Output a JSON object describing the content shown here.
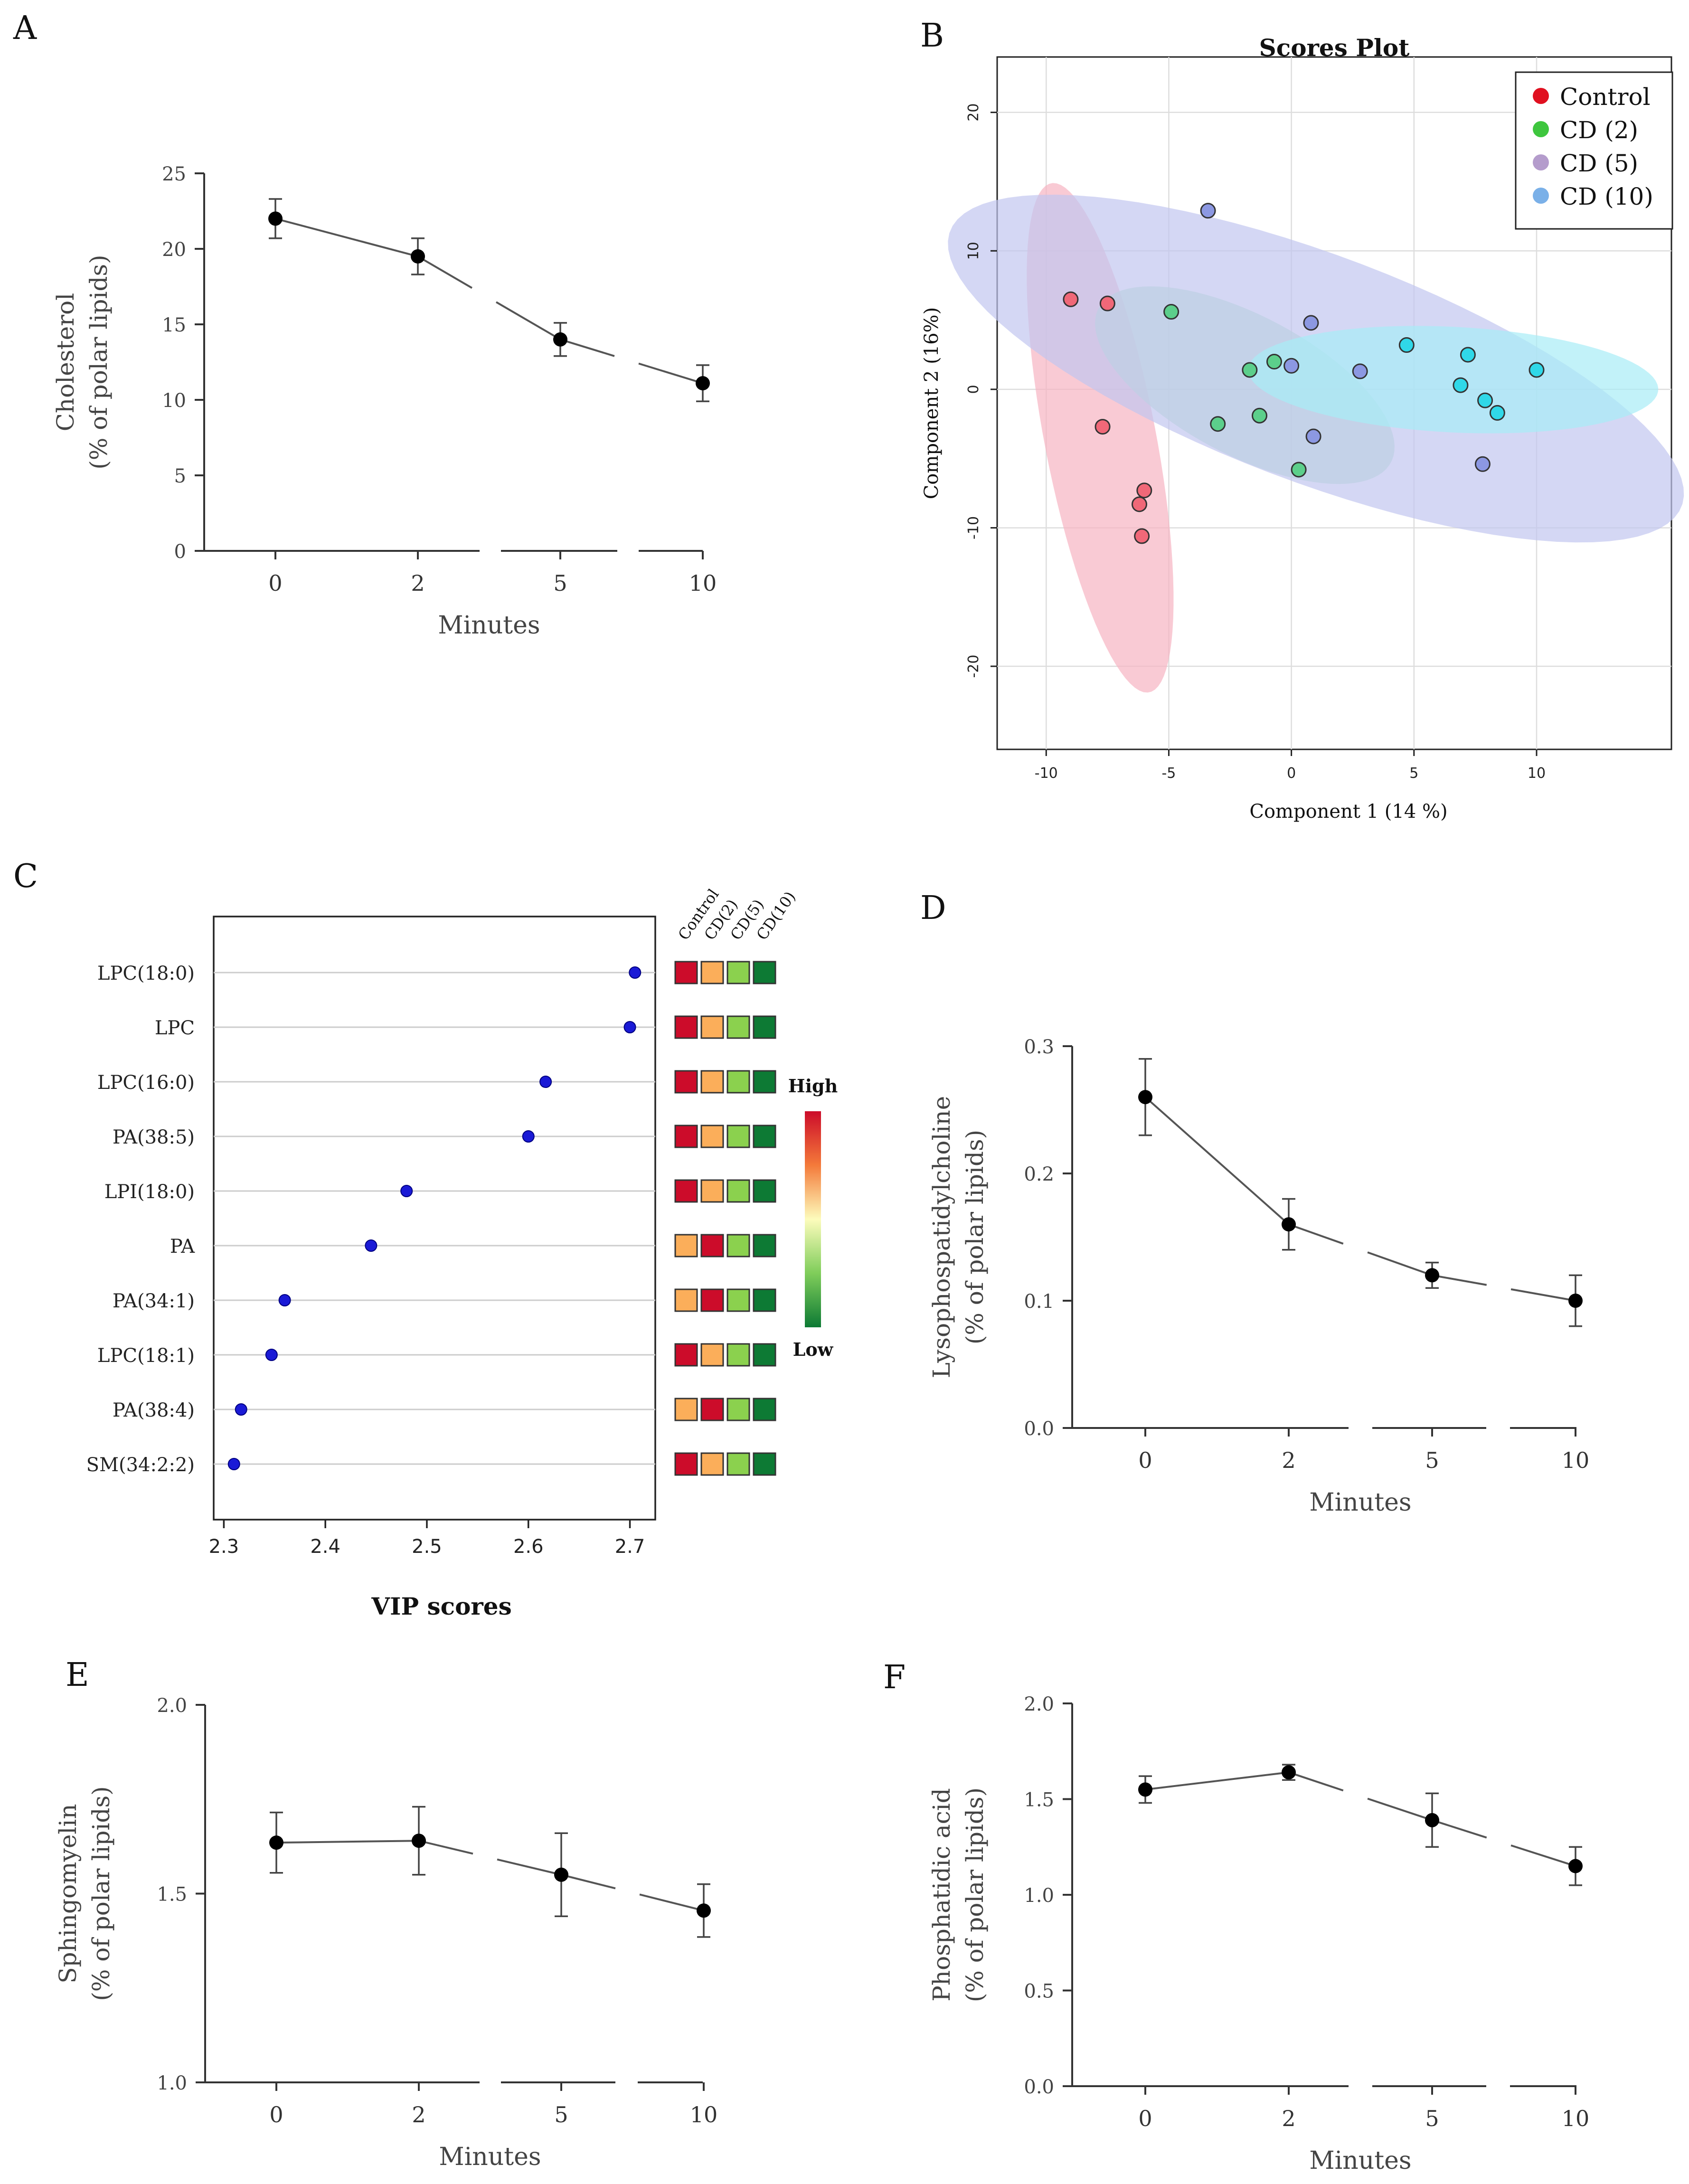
{
  "chart_data": [
    {
      "panel": "A",
      "type": "line",
      "title": "",
      "xlabel": "Minutes",
      "ylabel": [
        "Cholesterol",
        "(% of polar lipids)"
      ],
      "categories": [
        "0",
        "2",
        "5",
        "10"
      ],
      "ylim": [
        0,
        25
      ],
      "yticks": [
        "0",
        "5",
        "10",
        "15",
        "20",
        "25"
      ],
      "series": [
        {
          "values": [
            22.0,
            19.5,
            14.0,
            11.1
          ],
          "errors": [
            1.3,
            1.2,
            1.1,
            1.2
          ]
        }
      ]
    },
    {
      "panel": "B",
      "type": "scatter",
      "title": "Scores Plot",
      "xlabel": "Component 1 (14 %)",
      "ylabel": "Component 2 (16%)",
      "xlim": [
        -12,
        15.5
      ],
      "ylim": [
        -26,
        24
      ],
      "xticks": [
        "-10",
        "-5",
        "0",
        "5",
        "10"
      ],
      "yticks": [
        "-20",
        "-10",
        "0",
        "10",
        "20"
      ],
      "legend_position": "top-right",
      "grid": true,
      "series": [
        {
          "name": "Control",
          "color": "#e01020",
          "fill": "#f06878",
          "ellipse": {
            "cx": -7.8,
            "cy": -3.5,
            "rx": 18.5,
            "ry": 2.3,
            "angle": -84,
            "color": "#f7b4c2"
          },
          "points": [
            [
              -9.0,
              6.5
            ],
            [
              -7.5,
              6.2
            ],
            [
              -7.7,
              -2.7
            ],
            [
              -6.0,
              -7.3
            ],
            [
              -6.2,
              -8.3
            ],
            [
              -6.1,
              -10.6
            ]
          ]
        },
        {
          "name": "CD (2)",
          "color": "#3ec63e",
          "fill": "#5ccf8b",
          "ellipse": {
            "cx": -1.9,
            "cy": 0.3,
            "rx": 8.5,
            "ry": 4.0,
            "angle": -52,
            "color": "#b4e6c8"
          },
          "points": [
            [
              -4.9,
              5.6
            ],
            [
              -1.7,
              1.4
            ],
            [
              -0.7,
              2.0
            ],
            [
              -3.0,
              -2.5
            ],
            [
              -1.3,
              -1.9
            ],
            [
              0.3,
              -5.8
            ]
          ]
        },
        {
          "name": "CD (5)",
          "color": "#b49ccc",
          "fill": "#8c98e2",
          "ellipse": {
            "cx": 1.0,
            "cy": 1.5,
            "rx": 18.2,
            "ry": 7.2,
            "angle": -38,
            "color": "#c2c6f0"
          },
          "points": [
            [
              -3.4,
              12.9
            ],
            [
              0.8,
              4.8
            ],
            [
              0.0,
              1.7
            ],
            [
              2.8,
              1.3
            ],
            [
              0.9,
              -3.4
            ],
            [
              7.8,
              -5.4
            ]
          ]
        },
        {
          "name": "CD (10)",
          "color": "#7ab0e8",
          "fill": "#30d8e8",
          "ellipse": {
            "cx": 6.6,
            "cy": 0.7,
            "rx": 8.4,
            "ry": 3.8,
            "angle": -6,
            "color": "#a8ecf6"
          },
          "points": [
            [
              4.7,
              3.2
            ],
            [
              7.2,
              2.5
            ],
            [
              10.0,
              1.4
            ],
            [
              6.9,
              0.3
            ],
            [
              7.9,
              -0.8
            ],
            [
              8.4,
              -1.7
            ]
          ]
        }
      ]
    },
    {
      "panel": "C",
      "type": "scatter",
      "title": "",
      "xlabel": "VIP scores",
      "ylabel": "",
      "xlim": [
        2.29,
        2.725
      ],
      "xticks": [
        "2.3",
        "2.4",
        "2.5",
        "2.6",
        "2.7"
      ],
      "categories": [
        "LPC(18:0)",
        "LPC",
        "LPC(16:0)",
        "PA(38:5)",
        "LPI(18:0)",
        "PA",
        "PA(34:1)",
        "LPC(18:1)",
        "PA(38:4)",
        "SM(34:2:2)"
      ],
      "values": [
        2.705,
        2.7,
        2.617,
        2.6,
        2.48,
        2.445,
        2.36,
        2.347,
        2.317,
        2.31
      ],
      "heatmap": {
        "columns": [
          "Control",
          "CD(2)",
          "CD(5)",
          "CD(10)"
        ],
        "levels": [
          [
            4,
            3,
            2,
            1
          ],
          [
            4,
            3,
            2,
            1
          ],
          [
            4,
            3,
            2,
            1
          ],
          [
            4,
            3,
            2,
            1
          ],
          [
            4,
            3,
            2,
            1
          ],
          [
            3,
            4,
            2,
            1
          ],
          [
            3,
            4,
            2,
            1
          ],
          [
            4,
            3,
            2,
            1
          ],
          [
            3,
            4,
            2,
            1
          ],
          [
            4,
            3,
            2,
            1
          ]
        ],
        "level_colors": {
          "1": "#0d7a34",
          "2": "#8bd14e",
          "3": "#fbae5a",
          "4": "#cc0c2a"
        }
      },
      "colorbar": {
        "high_label": "High",
        "low_label": "Low"
      }
    },
    {
      "panel": "D",
      "type": "line",
      "title": "",
      "xlabel": "Minutes",
      "ylabel": [
        "Lysophospatidylcholine",
        "(% of polar lipids)"
      ],
      "categories": [
        "0",
        "2",
        "5",
        "10"
      ],
      "ylim": [
        0,
        0.3
      ],
      "yticks": [
        "0.0",
        "0.1",
        "0.2",
        "0.3"
      ],
      "series": [
        {
          "values": [
            0.26,
            0.16,
            0.12,
            0.1
          ],
          "errors": [
            0.03,
            0.02,
            0.01,
            0.02
          ]
        }
      ]
    },
    {
      "panel": "E",
      "type": "line",
      "title": "",
      "xlabel": "Minutes",
      "ylabel": [
        "Sphingomyelin",
        "(% of polar lipids)"
      ],
      "categories": [
        "0",
        "2",
        "5",
        "10"
      ],
      "ylim": [
        1.0,
        2.0
      ],
      "yticks": [
        "1.0",
        "1.5",
        "2.0"
      ],
      "series": [
        {
          "values": [
            1.635,
            1.64,
            1.55,
            1.455
          ],
          "errors": [
            0.08,
            0.09,
            0.11,
            0.07
          ]
        }
      ]
    },
    {
      "panel": "F",
      "type": "line",
      "title": "",
      "xlabel": "Minutes",
      "ylabel": [
        "Phosphatidic acid",
        "(% of polar lipids)"
      ],
      "categories": [
        "0",
        "2",
        "5",
        "10"
      ],
      "ylim": [
        0,
        2.0
      ],
      "yticks": [
        "0.0",
        "0.5",
        "1.0",
        "1.5",
        "2.0"
      ],
      "series": [
        {
          "values": [
            1.55,
            1.64,
            1.39,
            1.15
          ],
          "errors": [
            0.07,
            0.04,
            0.14,
            0.1
          ]
        }
      ]
    }
  ]
}
